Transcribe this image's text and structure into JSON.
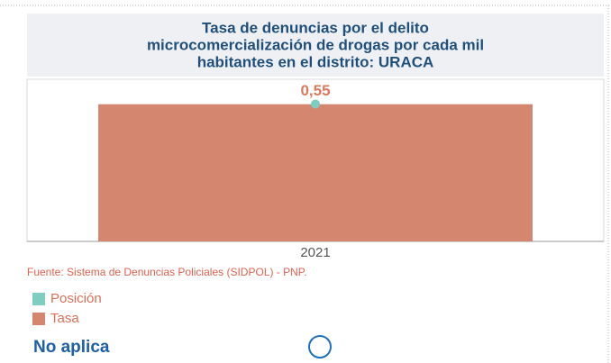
{
  "chart_data": {
    "type": "bar",
    "title": [
      "Tasa de denuncias por el delito",
      "microcomercialización de drogas por cada mil",
      "habitantes en el distrito: URACA"
    ],
    "categories": [
      "2021"
    ],
    "series": [
      {
        "name": "Posición",
        "color": "#7ecdc0",
        "values": [
          5
        ],
        "axis": "y2",
        "kind": "point"
      },
      {
        "name": "Tasa",
        "color": "#d4866e",
        "values": [
          0.55
        ],
        "value_labels": [
          "0,55"
        ],
        "kind": "bar"
      }
    ],
    "ylim": [
      0,
      0.65
    ],
    "y2lim": [
      0,
      5.9
    ],
    "source": "Fuente: Sistema de Denuncias Policiales (SIDPOL) - PNP.",
    "status": "No aplica"
  }
}
